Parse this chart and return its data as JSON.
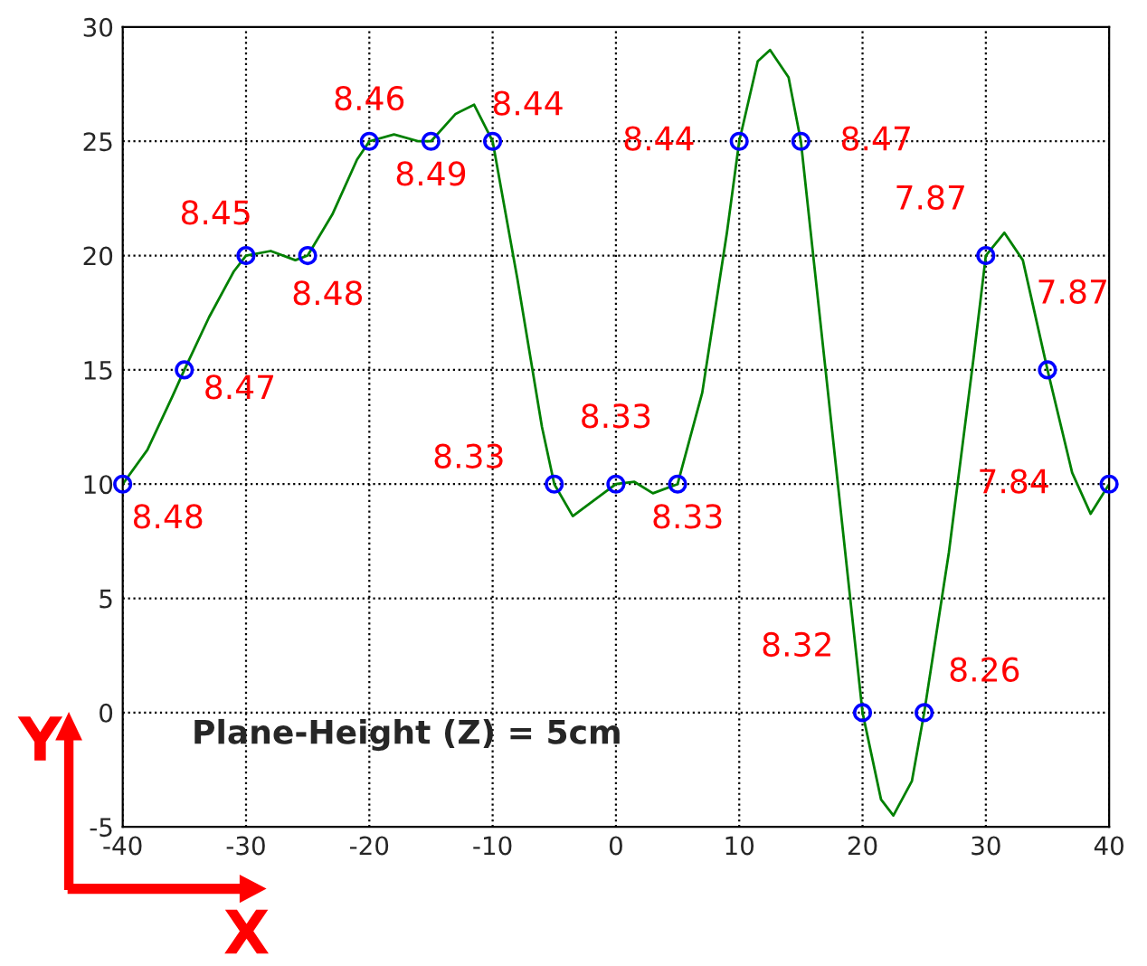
{
  "chart_data": {
    "type": "scatter",
    "xlabel": "X",
    "ylabel": "Y",
    "xlim": [
      -40,
      40
    ],
    "ylim": [
      -5,
      30
    ],
    "xticks": [
      -40,
      -30,
      -20,
      -10,
      0,
      10,
      20,
      30,
      40
    ],
    "yticks": [
      -5,
      0,
      5,
      10,
      15,
      20,
      25,
      30
    ],
    "grid": true,
    "series": [
      {
        "type": "line",
        "color": "#008000",
        "marker": "none",
        "x": [
          -40,
          -38,
          -36,
          -35,
          -33,
          -31,
          -30,
          -28,
          -26,
          -25,
          -23,
          -21,
          -20,
          -18,
          -16,
          -15,
          -13,
          -11.5,
          -10,
          -8,
          -6,
          -5,
          -3.5,
          -2,
          0,
          1.5,
          3,
          5,
          7,
          9,
          10,
          11.5,
          12.5,
          14,
          15,
          17,
          19,
          20,
          21.5,
          22.5,
          24,
          25,
          27,
          29,
          30,
          31.5,
          33,
          35,
          37,
          38.5,
          40
        ],
        "values": [
          10,
          11.5,
          13.8,
          15,
          17.3,
          19.3,
          20,
          20.2,
          19.8,
          20,
          21.8,
          24.2,
          25,
          25.3,
          25,
          25,
          26.2,
          26.6,
          25,
          19,
          12.5,
          10,
          8.6,
          9.2,
          10,
          10.1,
          9.6,
          10,
          14,
          21,
          25,
          28.5,
          29,
          27.8,
          25,
          15,
          5,
          0,
          -3.8,
          -4.5,
          -3,
          0,
          7,
          15.5,
          20,
          21,
          19.8,
          15,
          10.5,
          8.7,
          10
        ]
      },
      {
        "color": "#0000ff",
        "marker": "circle",
        "x": [
          -40,
          -35,
          -30,
          -25,
          -20,
          -15,
          -10,
          -5,
          0,
          5,
          10,
          15,
          20,
          25,
          30,
          35,
          40
        ],
        "values": [
          10,
          15,
          20,
          20,
          25,
          25,
          25,
          10,
          10,
          10,
          25,
          25,
          0,
          0,
          20,
          15,
          10
        ]
      }
    ],
    "annotations": [
      "Plane-Height (Z) = 5cm",
      {
        "text": "8.48",
        "x": -40,
        "y": 10
      },
      {
        "text": "8.47",
        "x": -35,
        "y": 15
      },
      {
        "text": "8.45",
        "x": -30,
        "y": 20
      },
      {
        "text": "8.48",
        "x": -25,
        "y": 20
      },
      {
        "text": "8.46",
        "x": -20,
        "y": 25
      },
      {
        "text": "8.49",
        "x": -15,
        "y": 25
      },
      {
        "text": "8.44",
        "x": -10,
        "y": 25
      },
      {
        "text": "8.33",
        "x": -5,
        "y": 10
      },
      {
        "text": "8.33",
        "x": 0,
        "y": 10
      },
      {
        "text": "8.33",
        "x": 5,
        "y": 10
      },
      {
        "text": "8.44",
        "x": 10,
        "y": 25
      },
      {
        "text": "8.47",
        "x": 15,
        "y": 25
      },
      {
        "text": "8.32",
        "x": 20,
        "y": 0
      },
      {
        "text": "8.26",
        "x": 25,
        "y": 0
      },
      {
        "text": "7.87",
        "x": 30,
        "y": 20
      },
      {
        "text": "7.87",
        "x": 35,
        "y": 15
      },
      {
        "text": "7.84",
        "x": 40,
        "y": 10
      }
    ]
  }
}
